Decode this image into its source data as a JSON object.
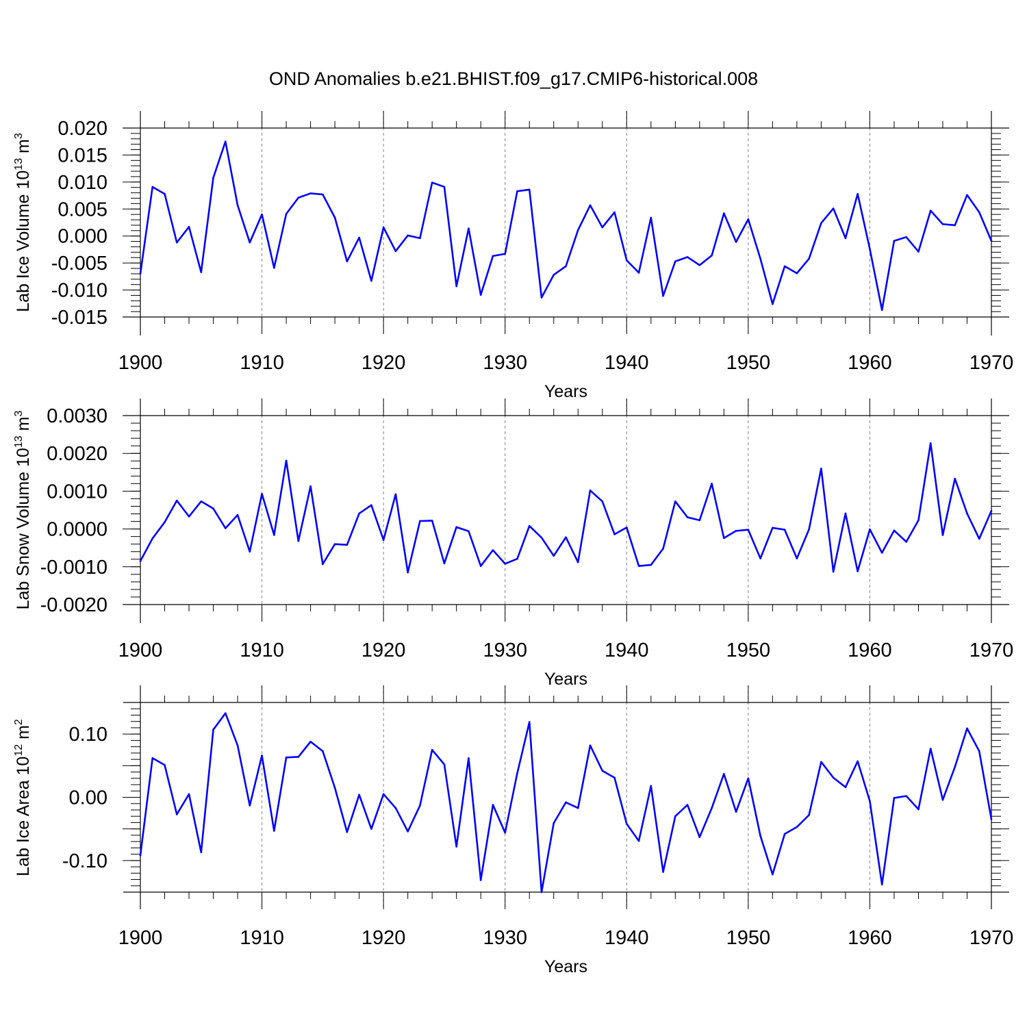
{
  "figure": {
    "title": "OND Anomalies b.e21.BHIST.f09_g17.CMIP6-historical.008"
  },
  "colors": {
    "line": "#0000ff",
    "axis": "#000000",
    "grid": "#808080"
  },
  "chart_data": [
    {
      "type": "line",
      "ylabel": "Lab Ice Volume 10",
      "ylabel_exp": "13",
      "ylabel_unit": " m",
      "ylabel_unit_exp": "3",
      "xlabel": "Years",
      "xlim": [
        1900,
        1970
      ],
      "ylim": [
        -0.015,
        0.02
      ],
      "yticks": [
        {
          "v": 0.02,
          "label": "0.020"
        },
        {
          "v": 0.015,
          "label": "0.015"
        },
        {
          "v": 0.01,
          "label": "0.010"
        },
        {
          "v": 0.005,
          "label": "0.005"
        },
        {
          "v": 0.0,
          "label": "0.000"
        },
        {
          "v": -0.005,
          "label": "-0.005"
        },
        {
          "v": -0.01,
          "label": "-0.010"
        },
        {
          "v": -0.015,
          "label": "-0.015"
        }
      ],
      "yminor_step": 0.001,
      "xticks": [
        {
          "v": 1900,
          "label": "1900"
        },
        {
          "v": 1910,
          "label": "1910"
        },
        {
          "v": 1920,
          "label": "1920"
        },
        {
          "v": 1930,
          "label": "1930"
        },
        {
          "v": 1940,
          "label": "1940"
        },
        {
          "v": 1950,
          "label": "1950"
        },
        {
          "v": 1960,
          "label": "1960"
        },
        {
          "v": 1970,
          "label": "1970"
        }
      ],
      "x_start": 1900,
      "values": [
        -0.007,
        0.0091,
        0.0078,
        -0.0012,
        0.0017,
        -0.0067,
        0.0108,
        0.0175,
        0.0057,
        -0.0012,
        0.004,
        -0.0059,
        0.0041,
        0.0071,
        0.0079,
        0.0077,
        0.0034,
        -0.0047,
        -0.0003,
        -0.0083,
        0.0016,
        -0.0028,
        0.0001,
        -0.0004,
        0.0099,
        0.0091,
        -0.0093,
        0.0014,
        -0.0109,
        -0.0037,
        -0.0033,
        0.0083,
        0.0086,
        -0.0114,
        -0.0072,
        -0.0056,
        0.0011,
        0.0057,
        0.0016,
        0.0044,
        -0.0045,
        -0.0068,
        0.0034,
        -0.0111,
        -0.0047,
        -0.0039,
        -0.0054,
        -0.0036,
        0.0042,
        -0.0011,
        0.0031,
        -0.0042,
        -0.0126,
        -0.0056,
        -0.0069,
        -0.0042,
        0.0024,
        0.0051,
        -0.0004,
        0.0078,
        -0.0024,
        -0.0137,
        -0.0009,
        -0.0002,
        -0.0029,
        0.0047,
        0.0022,
        0.002,
        0.0076,
        0.0044,
        -0.0009
      ]
    },
    {
      "type": "line",
      "ylabel": "Lab Snow Volume 10",
      "ylabel_exp": "13",
      "ylabel_unit": " m",
      "ylabel_unit_exp": "3",
      "xlabel": "Years",
      "xlim": [
        1900,
        1970
      ],
      "ylim": [
        -0.002,
        0.003
      ],
      "yticks": [
        {
          "v": 0.003,
          "label": "0.0030"
        },
        {
          "v": 0.002,
          "label": "0.0020"
        },
        {
          "v": 0.001,
          "label": "0.0010"
        },
        {
          "v": 0.0,
          "label": "0.0000"
        },
        {
          "v": -0.001,
          "label": "-0.0010"
        },
        {
          "v": -0.002,
          "label": "-0.0020"
        }
      ],
      "yminor_step": 0.0002,
      "xticks": [
        {
          "v": 1900,
          "label": "1900"
        },
        {
          "v": 1910,
          "label": "1910"
        },
        {
          "v": 1920,
          "label": "1920"
        },
        {
          "v": 1930,
          "label": "1930"
        },
        {
          "v": 1940,
          "label": "1940"
        },
        {
          "v": 1950,
          "label": "1950"
        },
        {
          "v": 1960,
          "label": "1960"
        },
        {
          "v": 1970,
          "label": "1970"
        }
      ],
      "x_start": 1900,
      "values": [
        -0.00085,
        -0.00025,
        0.00018,
        0.00075,
        0.00033,
        0.00073,
        0.00054,
        2e-05,
        0.00037,
        -0.0006,
        0.00093,
        -0.00016,
        0.00181,
        -0.00032,
        0.00113,
        -0.00093,
        -0.0004,
        -0.00042,
        0.00041,
        0.00063,
        -0.00029,
        0.00092,
        -0.00115,
        0.00021,
        0.00022,
        -0.00091,
        5e-05,
        -6e-05,
        -0.00098,
        -0.00056,
        -0.00092,
        -0.00079,
        8e-05,
        -0.00023,
        -0.00071,
        -0.00022,
        -0.00088,
        0.00102,
        0.00073,
        -0.00014,
        4e-05,
        -0.00098,
        -0.00095,
        -0.00052,
        0.00073,
        0.00031,
        0.00023,
        0.0012,
        -0.00024,
        -5e-05,
        -2e-05,
        -0.00078,
        3e-05,
        -2e-05,
        -0.00078,
        -1e-05,
        0.0016,
        -0.00113,
        0.00041,
        -0.00112,
        -1e-05,
        -0.00063,
        -4e-05,
        -0.00034,
        0.00023,
        0.00227,
        -0.00016,
        0.00133,
        0.00041,
        -0.00026,
        0.00048
      ]
    },
    {
      "type": "line",
      "ylabel": "Lab Ice Area 10",
      "ylabel_exp": "12",
      "ylabel_unit": " m",
      "ylabel_unit_exp": "2",
      "xlabel": "Years",
      "xlim": [
        1900,
        1970
      ],
      "ylim": [
        -0.15,
        0.15
      ],
      "yticks": [
        {
          "v": 0.1,
          "label": "0.10"
        },
        {
          "v": 0.0,
          "label": "0.00"
        },
        {
          "v": -0.1,
          "label": "-0.10"
        }
      ],
      "ymajor_tick_values": [
        0.1,
        0.05,
        0.0,
        -0.05,
        -0.1
      ],
      "yminor_step": 0.01,
      "xticks": [
        {
          "v": 1900,
          "label": "1900"
        },
        {
          "v": 1910,
          "label": "1910"
        },
        {
          "v": 1920,
          "label": "1920"
        },
        {
          "v": 1930,
          "label": "1930"
        },
        {
          "v": 1940,
          "label": "1940"
        },
        {
          "v": 1950,
          "label": "1950"
        },
        {
          "v": 1960,
          "label": "1960"
        },
        {
          "v": 1970,
          "label": "1970"
        }
      ],
      "x_start": 1900,
      "values": [
        -0.092,
        0.062,
        0.051,
        -0.027,
        0.005,
        -0.087,
        0.107,
        0.133,
        0.082,
        -0.013,
        0.066,
        -0.053,
        0.063,
        0.064,
        0.088,
        0.073,
        0.015,
        -0.055,
        0.004,
        -0.05,
        0.005,
        -0.017,
        -0.054,
        -0.013,
        0.075,
        0.052,
        -0.078,
        0.062,
        -0.131,
        -0.012,
        -0.056,
        0.038,
        0.119,
        -0.15,
        -0.041,
        -0.008,
        -0.017,
        0.082,
        0.042,
        0.031,
        -0.042,
        -0.069,
        0.018,
        -0.118,
        -0.03,
        -0.012,
        -0.063,
        -0.017,
        0.037,
        -0.023,
        0.03,
        -0.061,
        -0.122,
        -0.058,
        -0.047,
        -0.028,
        0.056,
        0.031,
        0.016,
        0.057,
        -0.006,
        -0.138,
        -0.001,
        0.002,
        -0.019,
        0.077,
        -0.004,
        0.048,
        0.109,
        0.073,
        -0.035
      ]
    }
  ]
}
